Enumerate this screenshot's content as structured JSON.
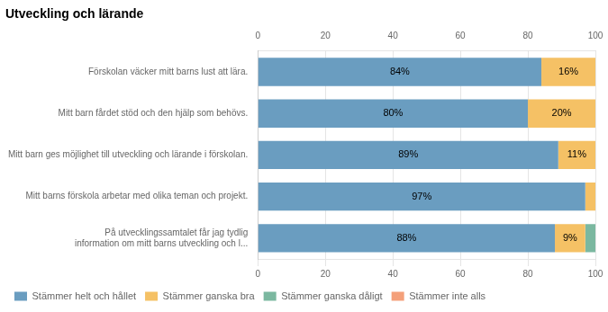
{
  "chart_data": {
    "type": "bar",
    "orientation": "horizontal",
    "stacked": true,
    "title": "Utveckling och lärande",
    "categories": [
      "Förskolan väcker mitt barns lust att lära.",
      "Mitt barn fårdet stöd och den hjälp som behövs.",
      "Mitt barn ges möjlighet till utveckling och lärande i förskolan.",
      "Mitt barns förskola arbetar med olika teman och projekt.",
      "På utvecklingssamtalet får jag tydlig\ninformation om mitt barns utveckling och l..."
    ],
    "series": [
      {
        "name": "Stämmer helt och hållet",
        "color": "#6a9dc0",
        "values": [
          84,
          80,
          89,
          97,
          88
        ],
        "value_labels": [
          "84%",
          "80%",
          "89%",
          "97%",
          "88%"
        ]
      },
      {
        "name": "Stämmer ganska bra",
        "color": "#f5c165",
        "values": [
          16,
          20,
          11,
          3,
          9
        ],
        "value_labels": [
          "16%",
          "20%",
          "11%",
          null,
          "9%"
        ]
      },
      {
        "name": "Stämmer ganska dåligt",
        "color": "#7bb8a0",
        "values": [
          0,
          0,
          0,
          0,
          3
        ],
        "value_labels": [
          null,
          null,
          null,
          null,
          null
        ]
      },
      {
        "name": "Stämmer inte alls",
        "color": "#f4a07a",
        "values": [
          0,
          0,
          0,
          0,
          0
        ],
        "value_labels": [
          null,
          null,
          null,
          null,
          null
        ]
      }
    ],
    "xlim": [
      0,
      100
    ],
    "xticks": [
      0,
      20,
      40,
      60,
      80,
      100
    ],
    "grid": true,
    "legend": "bottom",
    "data_labels": true
  }
}
